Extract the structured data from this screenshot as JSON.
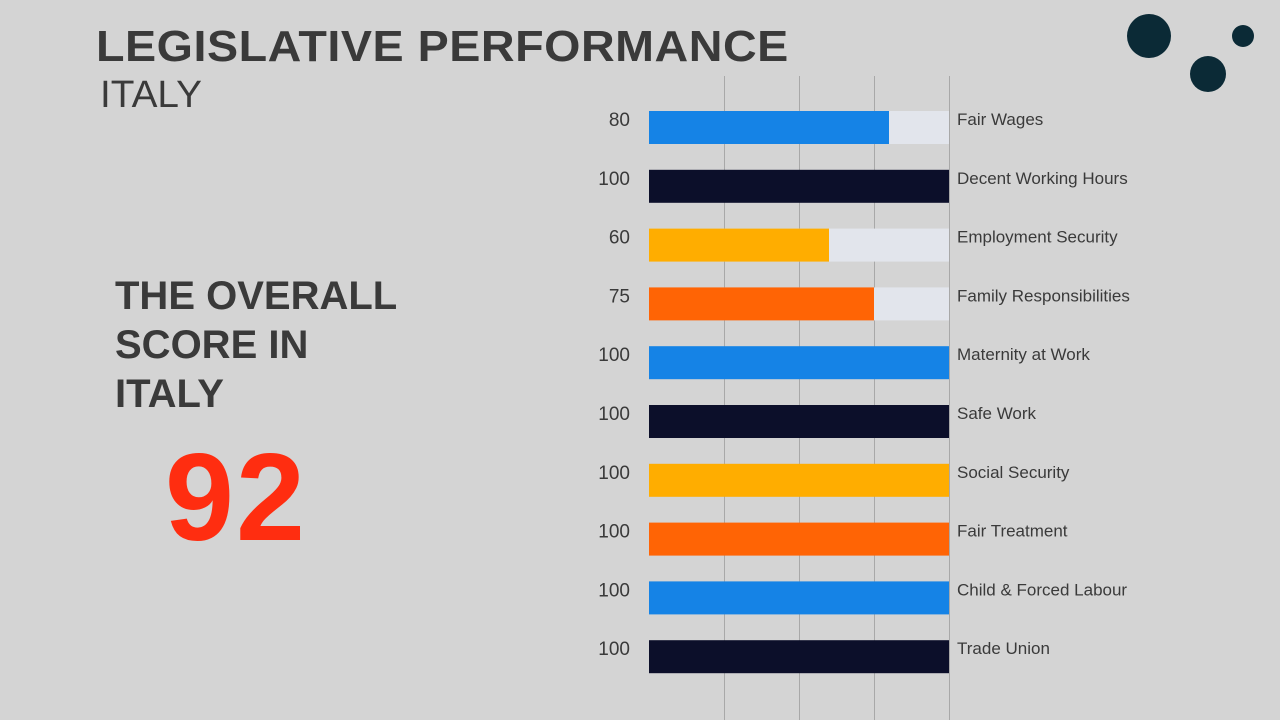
{
  "header": {
    "title": "LEGISLATIVE PERFORMANCE",
    "subtitle": "ITALY"
  },
  "overall": {
    "label": "THE OVERALL\nSCORE IN\nITALY",
    "score": "92"
  },
  "colors": {
    "background": "#d4d4d4",
    "track": "#e2e5ec",
    "blue": "#1583e6",
    "navy": "#0c0f2a",
    "yellow": "#ffad00",
    "orange": "#ff6405",
    "score": "#ff2d10",
    "dots": "#0b2a36"
  },
  "chart_data": {
    "type": "bar",
    "orientation": "horizontal",
    "xlim": [
      0,
      100
    ],
    "grid": true,
    "categories": [
      "Fair Wages",
      "Decent Working Hours",
      "Employment Security",
      "Family Responsibilities",
      "Maternity at Work",
      "Safe Work",
      "Social Security",
      "Fair Treatment",
      "Child & Forced Labour",
      "Trade Union"
    ],
    "values": [
      80,
      100,
      60,
      75,
      100,
      100,
      100,
      100,
      100,
      100
    ],
    "bar_colors": [
      "#1583e6",
      "#0c0f2a",
      "#ffad00",
      "#ff6405",
      "#1583e6",
      "#0c0f2a",
      "#ffad00",
      "#ff6405",
      "#1583e6",
      "#0c0f2a"
    ]
  }
}
